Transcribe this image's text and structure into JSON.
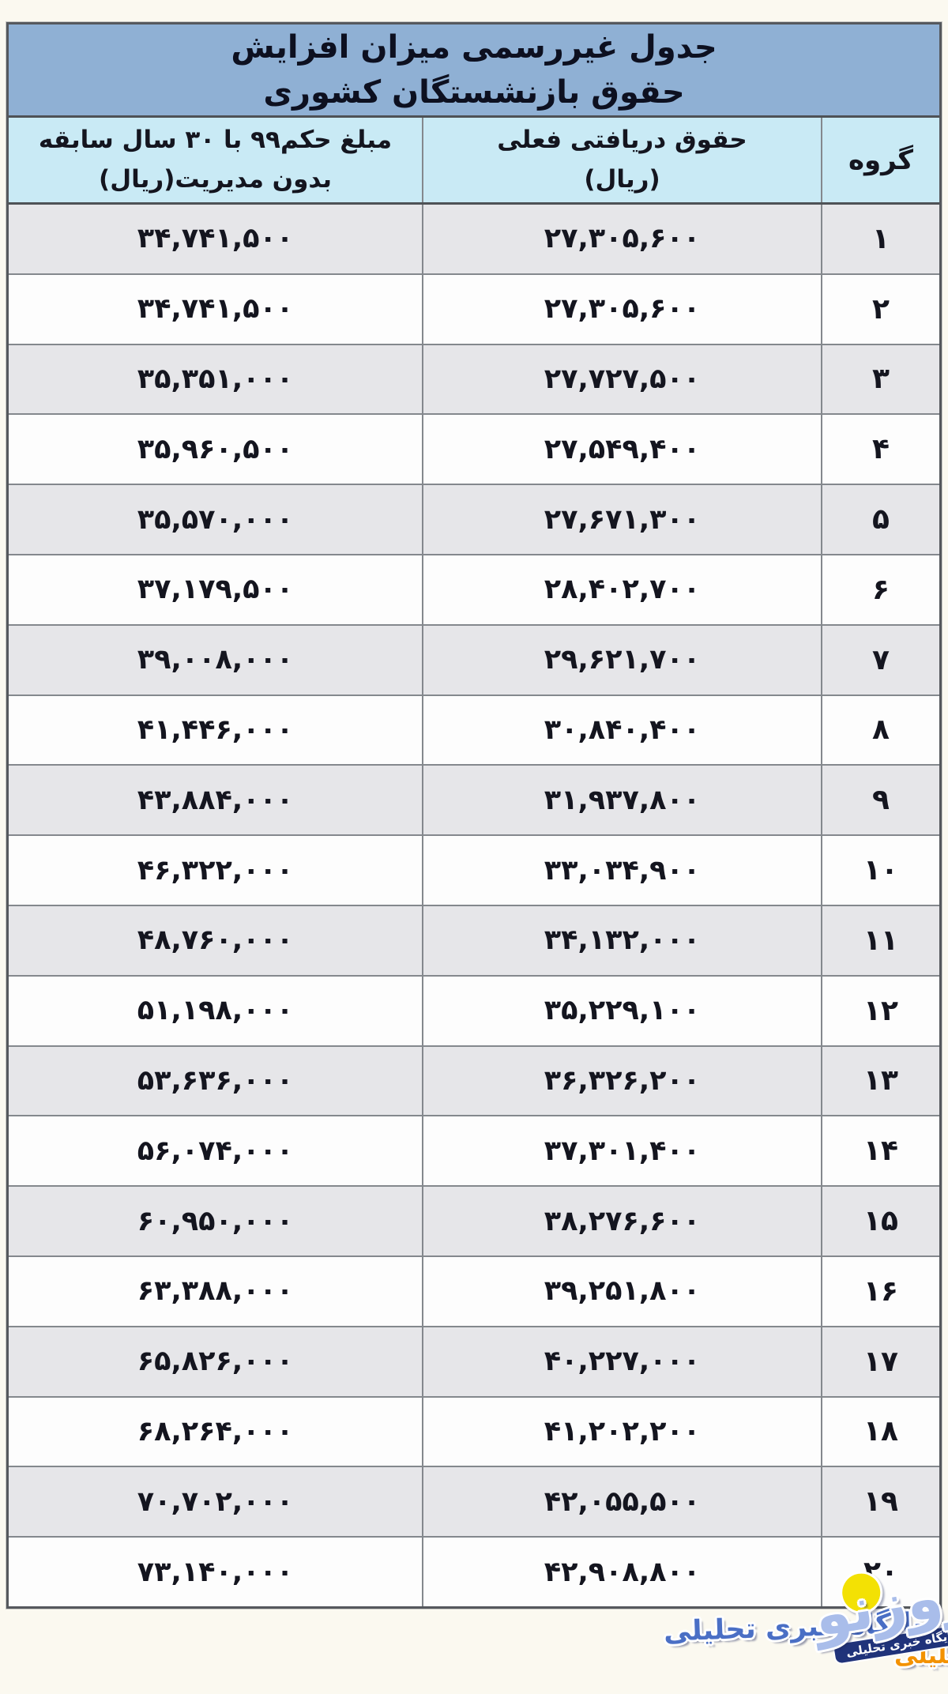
{
  "table": {
    "title_line1": "جدول غیررسمی میزان افزایش",
    "title_line2": "حقوق بازنشستگان کشوری",
    "columns": {
      "group": "گروه",
      "current_line1": "حقوق دریافتی فعلی",
      "current_line2": "(ریال)",
      "decree_line1": "مبلغ حکم۹۹ با ۳۰ سال سابقه",
      "decree_line2": "بدون مدیریت(ریال)"
    },
    "rows": [
      {
        "group": "۱",
        "current": "۲۷,۳۰۵,۶۰۰",
        "decree": "۳۴,۷۴۱,۵۰۰"
      },
      {
        "group": "۲",
        "current": "۲۷,۳۰۵,۶۰۰",
        "decree": "۳۴,۷۴۱,۵۰۰"
      },
      {
        "group": "۳",
        "current": "۲۷,۷۲۷,۵۰۰",
        "decree": "۳۵,۳۵۱,۰۰۰"
      },
      {
        "group": "۴",
        "current": "۲۷,۵۴۹,۴۰۰",
        "decree": "۳۵,۹۶۰,۵۰۰"
      },
      {
        "group": "۵",
        "current": "۲۷,۶۷۱,۳۰۰",
        "decree": "۳۵,۵۷۰,۰۰۰"
      },
      {
        "group": "۶",
        "current": "۲۸,۴۰۲,۷۰۰",
        "decree": "۳۷,۱۷۹,۵۰۰"
      },
      {
        "group": "۷",
        "current": "۲۹,۶۲۱,۷۰۰",
        "decree": "۳۹,۰۰۸,۰۰۰"
      },
      {
        "group": "۸",
        "current": "۳۰,۸۴۰,۴۰۰",
        "decree": "۴۱,۴۴۶,۰۰۰"
      },
      {
        "group": "۹",
        "current": "۳۱,۹۳۷,۸۰۰",
        "decree": "۴۳,۸۸۴,۰۰۰"
      },
      {
        "group": "۱۰",
        "current": "۳۳,۰۳۴,۹۰۰",
        "decree": "۴۶,۳۲۲,۰۰۰"
      },
      {
        "group": "۱۱",
        "current": "۳۴,۱۳۲,۰۰۰",
        "decree": "۴۸,۷۶۰,۰۰۰"
      },
      {
        "group": "۱۲",
        "current": "۳۵,۲۲۹,۱۰۰",
        "decree": "۵۱,۱۹۸,۰۰۰"
      },
      {
        "group": "۱۳",
        "current": "۳۶,۳۲۶,۲۰۰",
        "decree": "۵۳,۶۳۶,۰۰۰"
      },
      {
        "group": "۱۴",
        "current": "۳۷,۳۰۱,۴۰۰",
        "decree": "۵۶,۰۷۴,۰۰۰"
      },
      {
        "group": "۱۵",
        "current": "۳۸,۲۷۶,۶۰۰",
        "decree": "۶۰,۹۵۰,۰۰۰"
      },
      {
        "group": "۱۶",
        "current": "۳۹,۲۵۱,۸۰۰",
        "decree": "۶۳,۳۸۸,۰۰۰"
      },
      {
        "group": "۱۷",
        "current": "۴۰,۲۲۷,۰۰۰",
        "decree": "۶۵,۸۲۶,۰۰۰"
      },
      {
        "group": "۱۸",
        "current": "۴۱,۲۰۲,۲۰۰",
        "decree": "۶۸,۲۶۴,۰۰۰"
      },
      {
        "group": "۱۹",
        "current": "۴۲,۰۵۵,۵۰۰",
        "decree": "۷۰,۷۰۲,۰۰۰"
      },
      {
        "group": "۲۰",
        "current": "۴۲,۹۰۸,۸۰۰",
        "decree": "۷۳,۱۴۰,۰۰۰"
      }
    ]
  },
  "watermark": {
    "label_blue": "پایگاه خبری تحلیلی",
    "label_orange": "پایگاه خبری تحلیلی",
    "logo_text": "روزنو",
    "logo_sub": "پایگاه خبری تحلیلی"
  },
  "colors": {
    "title_bg": "#8fb0d4",
    "header_bg": "#c9eaf5",
    "odd_row_bg": "#e6e6e9",
    "even_row_bg": "#fdfdfd",
    "watermark_blue": "#4a6fc5",
    "watermark_orange": "#f39200",
    "logo_dot_yellow": "#f3e104",
    "logo_text_color": "#a9bdea"
  }
}
